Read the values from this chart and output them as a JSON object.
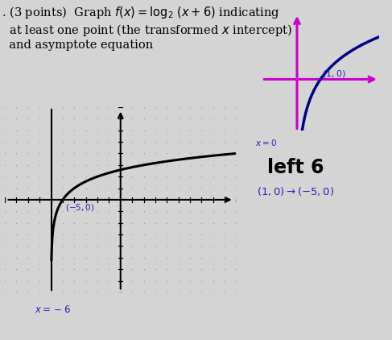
{
  "bg_color": "#d4d4d4",
  "title_text": ". (3 points)  Graph $f(x) = \\log_2\\,(x + 6)$ indicating\n  at least one point (the transformed $x$ intercept)\n  and asymptote equation",
  "title_fontsize": 10.5,
  "title_color": "#000000",
  "grid_color": "#999999",
  "axis_color": "#000000",
  "curve_color": "#000000",
  "label_color": "#2222bb",
  "left6_color": "#000000",
  "mini_curve_color": "#00008b",
  "mini_axis_color": "#cc00cc",
  "point_label": "$(-5, 0)$",
  "mini_point_label": "$(1, 0)$",
  "left6_text": "left 6",
  "arrow_text": "$(1, 0) \\rightarrow (-5, 0)$",
  "asymptote_label": "$x = -6$",
  "mini_asymptote_label": "$x = 0$",
  "xlim": [
    -10,
    10
  ],
  "ylim": [
    -8,
    8
  ]
}
